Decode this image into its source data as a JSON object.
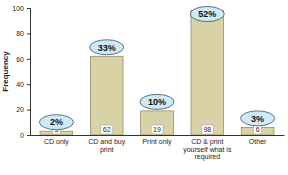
{
  "chart_data": {
    "type": "bar",
    "y_label": "Frequency",
    "categories": [
      "CD only",
      "CD and buy print",
      "Print only",
      "CD & print yourself what is required",
      "Other"
    ],
    "values": [
      3,
      62,
      19,
      98,
      6
    ],
    "color": "#d9d2a6",
    "ylim": [
      0,
      100
    ],
    "yticks": [
      0,
      20,
      40,
      60,
      80,
      100
    ],
    "grid": false,
    "data_labels": true,
    "annotations": [
      "2%",
      "33%",
      "10%",
      "52%",
      "3%"
    ]
  }
}
